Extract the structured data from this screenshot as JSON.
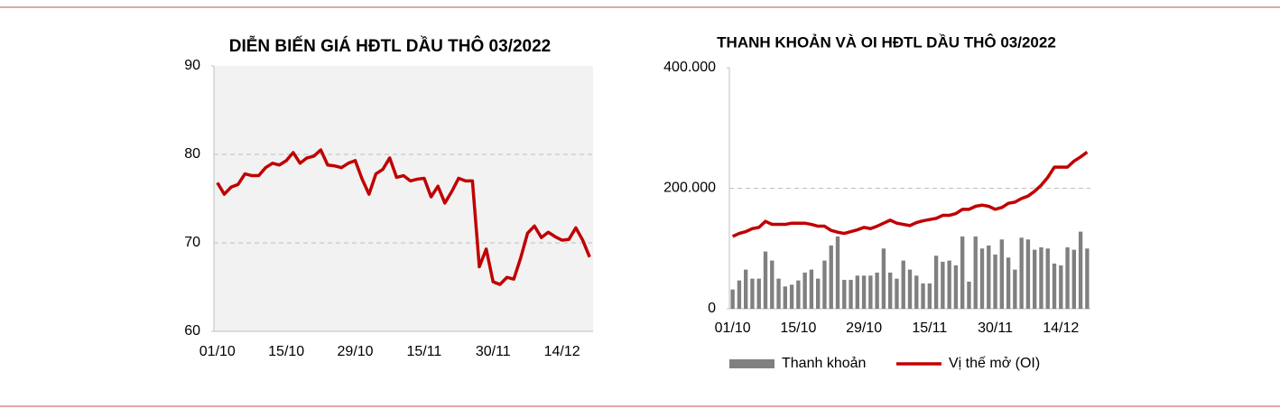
{
  "chart_data": [
    {
      "type": "line",
      "title": "DIỄN BIẾN GIÁ HĐTL DẦU THÔ 03/2022",
      "color": "#c00000",
      "background": "#f2f2f2",
      "grid": true,
      "categories": [
        "01/10",
        null,
        null,
        null,
        null,
        null,
        null,
        null,
        null,
        null,
        "15/10",
        null,
        null,
        null,
        null,
        null,
        null,
        null,
        null,
        null,
        "29/10",
        null,
        null,
        null,
        null,
        null,
        null,
        null,
        null,
        null,
        "15/11",
        null,
        null,
        null,
        null,
        null,
        null,
        null,
        null,
        null,
        "30/11",
        null,
        null,
        null,
        null,
        null,
        null,
        null,
        null,
        null,
        "14/12",
        null,
        null,
        null,
        null
      ],
      "values": [
        76.8,
        75.5,
        76.3,
        76.6,
        77.8,
        77.6,
        77.6,
        78.5,
        79.0,
        78.8,
        79.3,
        80.2,
        79.0,
        79.6,
        79.8,
        80.5,
        78.8,
        78.7,
        78.5,
        79.0,
        79.3,
        77.2,
        75.5,
        77.8,
        78.3,
        79.6,
        77.4,
        77.6,
        77.0,
        77.2,
        77.3,
        75.2,
        76.4,
        74.5,
        75.8,
        77.3,
        77.0,
        77.0,
        67.3,
        69.3,
        65.6,
        65.3,
        66.1,
        65.9,
        68.3,
        71.1,
        71.9,
        70.6,
        71.2,
        70.7,
        70.3,
        70.4,
        71.7,
        70.3,
        68.4
      ],
      "ylim": [
        60,
        90
      ],
      "yticks": [
        60,
        70,
        80,
        90
      ]
    },
    {
      "type": "combo",
      "title": "THANH KHOẢN VÀ OI HĐTL DẦU THÔ 03/2022",
      "background": "#ffffff",
      "grid": true,
      "legend": "bottom",
      "categories": [
        "01/10",
        null,
        null,
        null,
        null,
        null,
        null,
        null,
        null,
        null,
        "15/10",
        null,
        null,
        null,
        null,
        null,
        null,
        null,
        null,
        null,
        "29/10",
        null,
        null,
        null,
        null,
        null,
        null,
        null,
        null,
        null,
        "15/11",
        null,
        null,
        null,
        null,
        null,
        null,
        null,
        null,
        null,
        "30/11",
        null,
        null,
        null,
        null,
        null,
        null,
        null,
        null,
        null,
        "14/12",
        null,
        null,
        null,
        null
      ],
      "series": [
        {
          "name": "Thanh khoản",
          "color": "#808080",
          "type": "bar",
          "values": [
            32000,
            47000,
            65000,
            50000,
            50000,
            95000,
            80000,
            50000,
            37000,
            40000,
            47000,
            60000,
            65000,
            50000,
            80000,
            105000,
            120000,
            48000,
            48000,
            55000,
            55000,
            55000,
            60000,
            100000,
            60000,
            50000,
            80000,
            65000,
            55000,
            42000,
            42000,
            88000,
            78000,
            80000,
            72000,
            120000,
            45000,
            120000,
            100000,
            105000,
            90000,
            115000,
            85000,
            65000,
            118000,
            115000,
            98000,
            102000,
            100000,
            75000,
            72000,
            102000,
            98000,
            128000,
            100000
          ]
        },
        {
          "name": "Vị thế mở (OI)",
          "color": "#c00000",
          "type": "line",
          "values": [
            120000,
            125000,
            128000,
            133000,
            135000,
            145000,
            140000,
            140000,
            140000,
            142000,
            142000,
            142000,
            140000,
            137000,
            137000,
            130000,
            127000,
            125000,
            128000,
            131000,
            135000,
            133000,
            137000,
            142000,
            147000,
            142000,
            140000,
            138000,
            143000,
            146000,
            148000,
            150000,
            155000,
            155000,
            158000,
            165000,
            165000,
            170000,
            172000,
            170000,
            165000,
            168000,
            175000,
            177000,
            183000,
            187000,
            195000,
            205000,
            218000,
            235000,
            235000,
            235000,
            245000,
            252000,
            260000
          ]
        }
      ],
      "ylim": [
        0,
        400000
      ],
      "yticks": [
        0,
        {
          "value": 200000,
          "label": "200.000"
        },
        {
          "value": 400000,
          "label": "400.000"
        }
      ]
    }
  ]
}
